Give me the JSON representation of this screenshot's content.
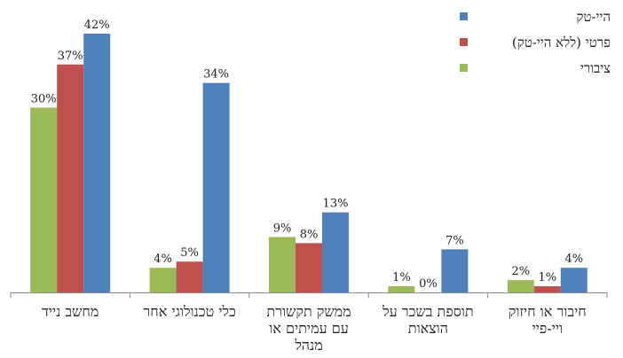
{
  "chart_data": {
    "type": "bar",
    "categories": [
      [
        "מחשב נייד"
      ],
      [
        "כלי טכנולוגי אחר"
      ],
      [
        "ממשק תקשורת",
        "עם עמיתים או",
        "מנהל"
      ],
      [
        "תוספת בשכר על",
        "הוצאות"
      ],
      [
        "חיבור או חיזוק",
        "ויי-פיי"
      ]
    ],
    "series": [
      {
        "name": "ציבורי",
        "color": "#9BBB59",
        "values": [
          30,
          4,
          9,
          1,
          2
        ],
        "labels": [
          "30%",
          "4%",
          "9%",
          "1%",
          "2%"
        ]
      },
      {
        "name": "פרטי (ללא היי-טק)",
        "color": "#C0504D",
        "values": [
          37,
          5,
          8,
          0,
          1
        ],
        "labels": [
          "37%",
          "5%",
          "8%",
          "0%",
          "1%"
        ]
      },
      {
        "name": "היי-טק",
        "color": "#4F81BD",
        "values": [
          42,
          34,
          13,
          7,
          4
        ],
        "labels": [
          "42%",
          "34%",
          "13%",
          "7%",
          "4%"
        ]
      }
    ],
    "ylim": [
      0,
      42
    ],
    "grid": false,
    "legend_position": "top-right",
    "title": "",
    "xlabel": "",
    "ylabel": ""
  },
  "legend": [
    {
      "label": "היי-טק",
      "color": "#4F81BD"
    },
    {
      "label": "פרטי (ללא היי-טק)",
      "color": "#C0504D"
    },
    {
      "label": "ציבורי",
      "color": "#9BBB59"
    }
  ]
}
